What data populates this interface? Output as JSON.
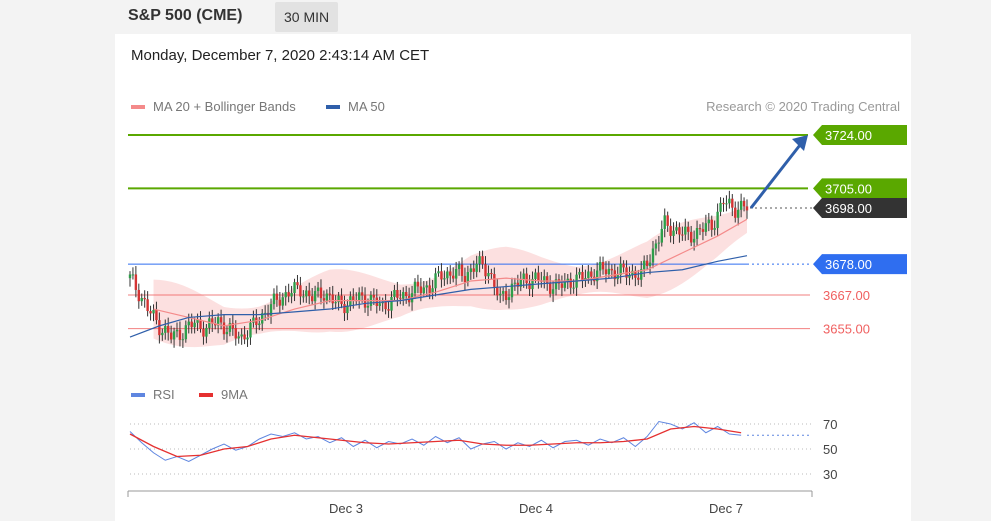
{
  "header": {
    "title": "S&P 500 (CME)",
    "interval": "30 MIN"
  },
  "timestamp": "Monday, December 7, 2020 2:43:14 AM CET",
  "copyright": "Research © 2020 Trading Central",
  "colors": {
    "resistance": "#5aa800",
    "last": "#333333",
    "pivot": "#2f6ef0",
    "support": "#f06060",
    "ma20": "#f48a8a",
    "bollinger": "#fbd6d6",
    "ma50": "#2f5faa",
    "rsi": "#5f86e0",
    "rsi_ma": "#e53030"
  },
  "chart_data": [
    {
      "type": "candlestick",
      "legend": [
        {
          "name": "MA 20 + Bollinger Bands",
          "color": "#f48a8a"
        },
        {
          "name": "MA 50",
          "color": "#2f5faa"
        }
      ],
      "x_ticks": [
        "Dec 3",
        "Dec 4",
        "Dec 7"
      ],
      "ylim": [
        3645,
        3730
      ],
      "levels": [
        {
          "value": 3724.0,
          "label": "3724.00",
          "kind": "resistance"
        },
        {
          "value": 3705.0,
          "label": "3705.00",
          "kind": "resistance"
        },
        {
          "value": 3698.0,
          "label": "3698.00",
          "kind": "last"
        },
        {
          "value": 3678.0,
          "label": "3678.00",
          "kind": "pivot"
        },
        {
          "value": 3667.0,
          "label": "3667.00",
          "kind": "support"
        },
        {
          "value": 3655.0,
          "label": "3655.00",
          "kind": "support"
        }
      ],
      "forecast_arrow": {
        "from": 3698.0,
        "to": 3724.0
      },
      "close_path": [
        [
          0,
          3673
        ],
        [
          3,
          3668
        ],
        [
          6,
          3662
        ],
        [
          10,
          3656
        ],
        [
          14,
          3652
        ],
        [
          18,
          3654
        ],
        [
          22,
          3657
        ],
        [
          26,
          3655
        ],
        [
          30,
          3658
        ],
        [
          34,
          3654
        ],
        [
          38,
          3652
        ],
        [
          42,
          3656
        ],
        [
          46,
          3661
        ],
        [
          50,
          3665
        ],
        [
          54,
          3668
        ],
        [
          58,
          3669
        ],
        [
          62,
          3666
        ],
        [
          66,
          3668
        ],
        [
          70,
          3664
        ],
        [
          74,
          3664
        ],
        [
          78,
          3666
        ],
        [
          82,
          3665
        ],
        [
          86,
          3663
        ],
        [
          90,
          3666
        ],
        [
          94,
          3667
        ],
        [
          98,
          3669
        ],
        [
          102,
          3670
        ],
        [
          106,
          3674
        ],
        [
          110,
          3675
        ],
        [
          114,
          3674
        ],
        [
          118,
          3678
        ],
        [
          122,
          3676
        ],
        [
          126,
          3665
        ],
        [
          130,
          3670
        ],
        [
          134,
          3672
        ],
        [
          138,
          3673
        ],
        [
          142,
          3671
        ],
        [
          146,
          3670
        ],
        [
          150,
          3672
        ],
        [
          154,
          3673
        ],
        [
          158,
          3675
        ],
        [
          162,
          3676
        ],
        [
          166,
          3675
        ],
        [
          170,
          3675
        ],
        [
          174,
          3674
        ],
        [
          178,
          3683
        ],
        [
          182,
          3692
        ],
        [
          186,
          3690
        ],
        [
          190,
          3688
        ],
        [
          194,
          3690
        ],
        [
          198,
          3692
        ],
        [
          202,
          3700
        ],
        [
          206,
          3698
        ],
        [
          210,
          3698
        ]
      ],
      "ma20_path": [
        [
          8,
          3662
        ],
        [
          20,
          3659
        ],
        [
          32,
          3656
        ],
        [
          44,
          3658
        ],
        [
          56,
          3662
        ],
        [
          68,
          3665
        ],
        [
          80,
          3665
        ],
        [
          92,
          3665
        ],
        [
          104,
          3668
        ],
        [
          116,
          3672
        ],
        [
          128,
          3673
        ],
        [
          140,
          3672
        ],
        [
          152,
          3672
        ],
        [
          164,
          3674
        ],
        [
          176,
          3676
        ],
        [
          188,
          3682
        ],
        [
          200,
          3688
        ],
        [
          210,
          3694
        ]
      ],
      "ma50_path": [
        [
          0,
          3652
        ],
        [
          10,
          3656
        ],
        [
          20,
          3659
        ],
        [
          32,
          3660
        ],
        [
          44,
          3660
        ],
        [
          56,
          3661
        ],
        [
          68,
          3662
        ],
        [
          80,
          3664
        ],
        [
          92,
          3665
        ],
        [
          104,
          3667
        ],
        [
          116,
          3669
        ],
        [
          128,
          3670
        ],
        [
          140,
          3671
        ],
        [
          152,
          3672
        ],
        [
          164,
          3673
        ],
        [
          176,
          3675
        ],
        [
          188,
          3676
        ],
        [
          200,
          3679
        ],
        [
          210,
          3681
        ]
      ],
      "bollinger_band": {
        "width": 8
      }
    },
    {
      "type": "line",
      "legend": [
        {
          "name": "RSI",
          "color": "#5f86e0"
        },
        {
          "name": "9MA",
          "color": "#e53030"
        }
      ],
      "y_ticks": [
        70,
        50,
        30
      ],
      "ylim": [
        20,
        80
      ],
      "rsi": [
        [
          0,
          64
        ],
        [
          4,
          55
        ],
        [
          8,
          47
        ],
        [
          12,
          41
        ],
        [
          16,
          44
        ],
        [
          20,
          40
        ],
        [
          24,
          45
        ],
        [
          28,
          50
        ],
        [
          32,
          54
        ],
        [
          36,
          49
        ],
        [
          40,
          52
        ],
        [
          44,
          58
        ],
        [
          48,
          62
        ],
        [
          52,
          60
        ],
        [
          56,
          63
        ],
        [
          60,
          58
        ],
        [
          64,
          60
        ],
        [
          68,
          55
        ],
        [
          72,
          59
        ],
        [
          76,
          52
        ],
        [
          80,
          57
        ],
        [
          84,
          51
        ],
        [
          88,
          56
        ],
        [
          92,
          54
        ],
        [
          96,
          58
        ],
        [
          100,
          53
        ],
        [
          104,
          60
        ],
        [
          108,
          55
        ],
        [
          112,
          59
        ],
        [
          116,
          50
        ],
        [
          120,
          54
        ],
        [
          124,
          56
        ],
        [
          128,
          50
        ],
        [
          132,
          55
        ],
        [
          136,
          52
        ],
        [
          140,
          57
        ],
        [
          144,
          51
        ],
        [
          148,
          56
        ],
        [
          152,
          57
        ],
        [
          156,
          53
        ],
        [
          160,
          58
        ],
        [
          164,
          55
        ],
        [
          168,
          59
        ],
        [
          172,
          52
        ],
        [
          176,
          60
        ],
        [
          180,
          72
        ],
        [
          184,
          70
        ],
        [
          188,
          66
        ],
        [
          192,
          71
        ],
        [
          196,
          63
        ],
        [
          200,
          68
        ],
        [
          204,
          62
        ],
        [
          208,
          61
        ]
      ],
      "rsi_ma": [
        [
          0,
          62
        ],
        [
          8,
          52
        ],
        [
          16,
          44
        ],
        [
          24,
          45
        ],
        [
          32,
          50
        ],
        [
          40,
          52
        ],
        [
          48,
          58
        ],
        [
          56,
          61
        ],
        [
          64,
          59
        ],
        [
          72,
          57
        ],
        [
          80,
          55
        ],
        [
          88,
          54
        ],
        [
          96,
          55
        ],
        [
          104,
          56
        ],
        [
          112,
          57
        ],
        [
          120,
          54
        ],
        [
          128,
          53
        ],
        [
          136,
          53
        ],
        [
          144,
          54
        ],
        [
          152,
          55
        ],
        [
          160,
          55
        ],
        [
          168,
          56
        ],
        [
          176,
          58
        ],
        [
          184,
          66
        ],
        [
          192,
          68
        ],
        [
          200,
          66
        ],
        [
          208,
          63
        ]
      ]
    }
  ]
}
